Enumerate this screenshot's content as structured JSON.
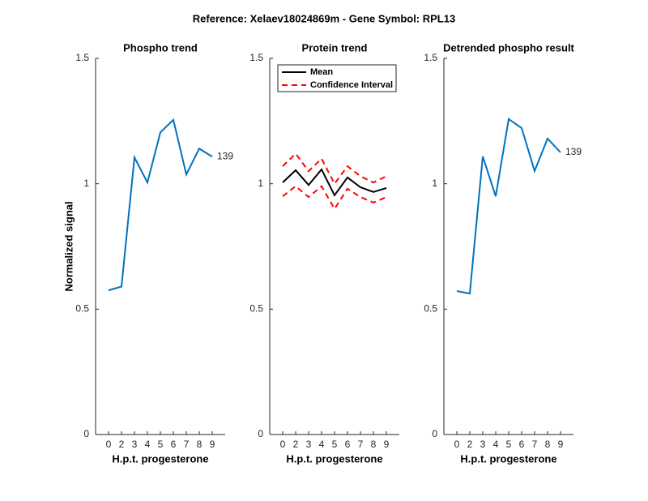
{
  "title": "Reference:  Xelaev18024869m - Gene Symbol:  RPL13",
  "chart_data": [
    {
      "type": "line",
      "title": "Phospho trend",
      "x_label": "H.p.t. progesterone",
      "y_label": "Normalized signal",
      "categories": [
        "0",
        "2",
        "3",
        "4",
        "5",
        "6",
        "7",
        "8",
        "9"
      ],
      "ylim": [
        0,
        1.5
      ],
      "yticks": [
        0,
        0.5,
        1,
        1.5
      ],
      "series": [
        {
          "name": "139",
          "color": "#0072bd",
          "values": [
            0.575,
            0.59,
            1.105,
            1.005,
            1.205,
            1.255,
            1.037,
            1.14,
            1.108
          ]
        }
      ]
    },
    {
      "type": "line",
      "title": "Protein trend",
      "x_label": "H.p.t. progesterone",
      "categories": [
        "0",
        "2",
        "3",
        "4",
        "5",
        "6",
        "7",
        "8",
        "9"
      ],
      "ylim": [
        0,
        1.5
      ],
      "yticks": [
        0,
        0.5,
        1,
        1.5
      ],
      "legend": "upper-left",
      "series": [
        {
          "name": "Mean",
          "color": "#000000",
          "values": [
            1.005,
            1.054,
            0.995,
            1.057,
            0.954,
            1.025,
            0.986,
            0.967,
            0.983
          ]
        },
        {
          "name": "Confidence Interval",
          "color": "#ff0000",
          "dashed": true,
          "values": [
            1.07,
            1.12,
            1.05,
            1.1,
            1.0,
            1.07,
            1.03,
            1.005,
            1.03
          ],
          "lower": [
            0.95,
            0.99,
            0.947,
            0.99,
            0.9,
            0.98,
            0.947,
            0.925,
            0.947
          ]
        }
      ]
    },
    {
      "type": "line",
      "title": "Detrended phospho result",
      "x_label": "H.p.t. progesterone",
      "categories": [
        "0",
        "2",
        "3",
        "4",
        "5",
        "6",
        "7",
        "8",
        "9"
      ],
      "ylim": [
        0,
        1.5
      ],
      "yticks": [
        0,
        0.5,
        1,
        1.5
      ],
      "series": [
        {
          "name": "139",
          "color": "#0072bd",
          "values": [
            0.572,
            0.562,
            1.109,
            0.95,
            1.258,
            1.222,
            1.051,
            1.18,
            1.125
          ]
        }
      ]
    }
  ]
}
